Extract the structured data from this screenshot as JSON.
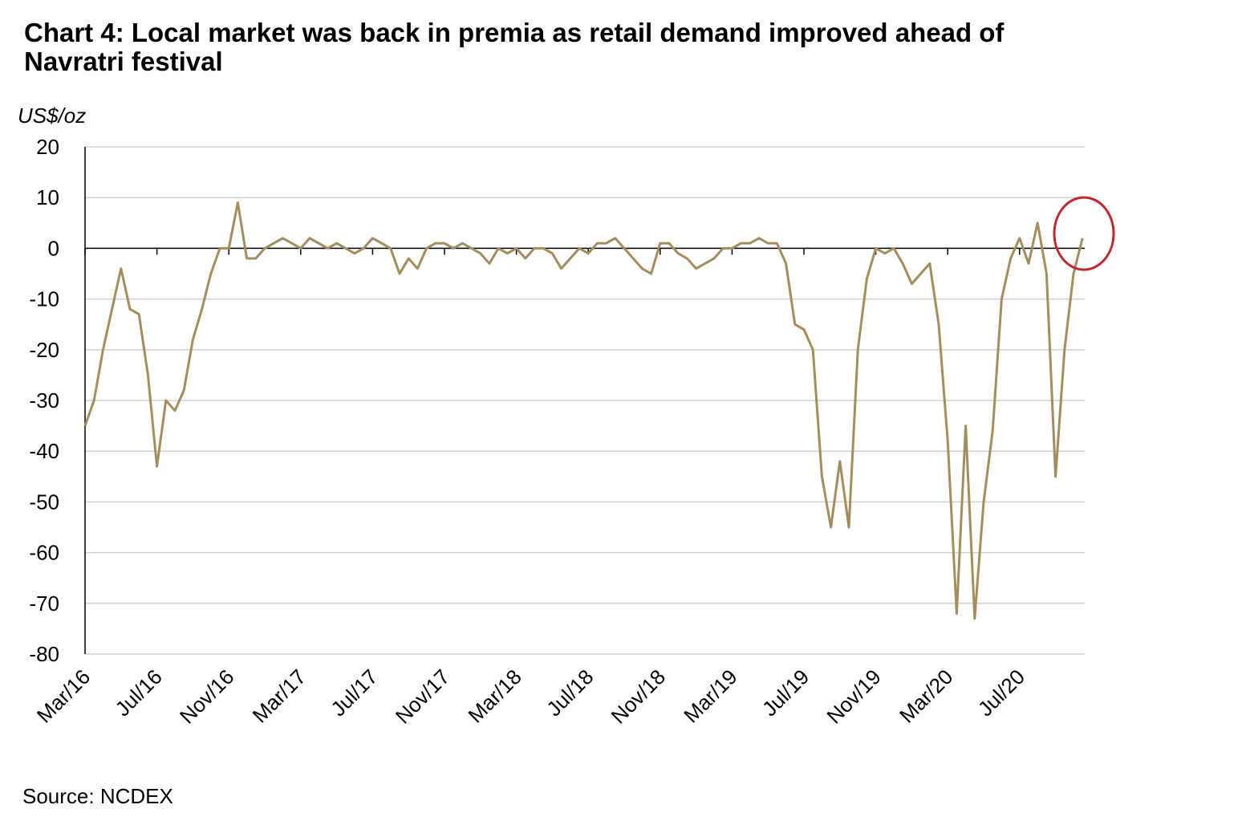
{
  "chart_data": {
    "type": "line",
    "title": "Chart 4: Local market was back in premia as retail demand improved ahead of Navratri festival",
    "ylabel": "US$/oz",
    "source": "Source: NCDEX",
    "color": "#a38d5d",
    "categories": [
      "Mar/16",
      null,
      null,
      null,
      null,
      null,
      null,
      null,
      "Jul/16",
      null,
      null,
      null,
      null,
      null,
      null,
      null,
      "Nov/16",
      null,
      null,
      null,
      null,
      null,
      null,
      null,
      "Mar/17",
      null,
      null,
      null,
      null,
      null,
      null,
      null,
      "Jul/17",
      null,
      null,
      null,
      null,
      null,
      null,
      null,
      "Nov/17",
      null,
      null,
      null,
      null,
      null,
      null,
      null,
      "Mar/18",
      null,
      null,
      null,
      null,
      null,
      null,
      null,
      "Jul/18",
      null,
      null,
      null,
      null,
      null,
      null,
      null,
      "Nov/18",
      null,
      null,
      null,
      null,
      null,
      null,
      null,
      "Mar/19",
      null,
      null,
      null,
      null,
      null,
      null,
      null,
      "Jul/19",
      null,
      null,
      null,
      null,
      null,
      null,
      null,
      "Nov/19",
      null,
      null,
      null,
      null,
      null,
      null,
      null,
      "Mar/20",
      null,
      null,
      null,
      null,
      null,
      null,
      null,
      "Jul/20",
      null,
      null,
      null,
      null,
      null,
      null,
      null
    ],
    "values": [
      -35,
      -30,
      -20,
      -12,
      -4,
      -12,
      -13,
      -25,
      -43,
      -30,
      -32,
      -28,
      -18,
      -12,
      -5,
      0,
      0,
      9,
      -2,
      -2,
      0,
      1,
      2,
      1,
      0,
      2,
      1,
      0,
      1,
      0,
      -1,
      0,
      2,
      1,
      0,
      -5,
      -2,
      -4,
      0,
      1,
      1,
      0,
      1,
      0,
      -1,
      -3,
      0,
      -1,
      0,
      -2,
      0,
      0,
      -1,
      -4,
      -2,
      0,
      -1,
      1,
      1,
      2,
      0,
      -2,
      -4,
      -5,
      1,
      1,
      -1,
      -2,
      -4,
      -3,
      -2,
      0,
      0,
      1,
      1,
      2,
      1,
      1,
      -3,
      -15,
      -16,
      -20,
      -45,
      -55,
      -42,
      -55,
      -20,
      -6,
      0,
      -1,
      0,
      -3,
      -7,
      -5,
      -3,
      -15,
      -38,
      -72,
      -35,
      -73,
      -50,
      -36,
      -10,
      -2,
      2,
      -3,
      5,
      -5,
      -45,
      -20,
      -5,
      2
    ],
    "ylim": [
      -80,
      20
    ],
    "yticks": [
      -80,
      -70,
      -60,
      -50,
      -40,
      -30,
      -20,
      -10,
      0,
      10,
      20
    ],
    "grid": true
  }
}
